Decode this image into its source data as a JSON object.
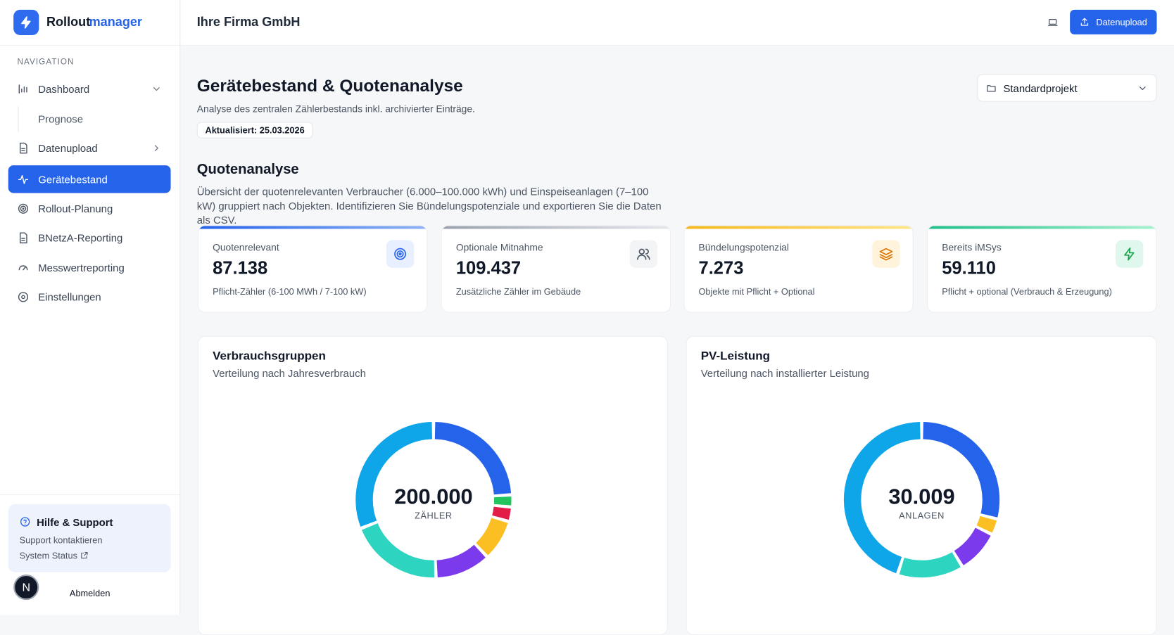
{
  "sidebar": {
    "brand": [
      "Rollout",
      "manager"
    ],
    "nav_heading": "NAVIGATION",
    "nav": [
      "Dashboard",
      "Prognose",
      "Datenupload",
      "Gerätebestand",
      "Rollout-Planung",
      "BNetzA-Reporting",
      "Messwertreporting",
      "Einstellungen"
    ],
    "help": {
      "title": "Hilfe & Support",
      "links": [
        "Support kontaktieren",
        "System Status"
      ]
    },
    "avatar": "N",
    "logout": "Abmelden"
  },
  "header": {
    "company": "Ihre Firma GmbH",
    "upload_button": "Datenupload"
  },
  "page": {
    "title": "Gerätebestand & Quotenanalyse",
    "subtitle": "Analyse des zentralen Zählerbestands inkl. archivierter Einträge.",
    "updated": "Aktualisiert: 25.03.2026",
    "project_select": "Standardprojekt"
  },
  "section": {
    "title": "Quotenanalyse",
    "description": "Übersicht der quotenrelevanten Verbraucher (6.000–100.000 kWh) und Einspeiseanlagen (7–100 kW) gruppiert nach Objekten. Identifizieren Sie Bündelungspotenziale und exportieren Sie die Daten als CSV."
  },
  "kpis": [
    {
      "label": "Quotenrelevant",
      "value": "87.138",
      "caption": "Pflicht-Zähler (6-100 MWh / 7-100 kW)"
    },
    {
      "label": "Optionale Mitnahme",
      "value": "109.437",
      "caption": "Zusätzliche Zähler im Gebäude"
    },
    {
      "label": "Bündelungspotenzial",
      "value": "7.273",
      "caption": "Objekte mit Pflicht + Optional"
    },
    {
      "label": "Bereits iMSys",
      "value": "59.110",
      "caption": "Pflicht + optional (Verbrauch & Erzeugung)"
    }
  ],
  "chart_data": [
    {
      "type": "pie",
      "title": "Verbrauchsgruppen",
      "subtitle": "Verteilung nach Jahresverbrauch",
      "center_value": "200.000",
      "center_label": "ZÄHLER",
      "values": [
        48000,
        5000,
        6000,
        17000,
        23000,
        39000,
        62000
      ],
      "colors": [
        "#2563eb",
        "#22c55e",
        "#e11d48",
        "#fbbf24",
        "#7c3aed",
        "#2dd4bf",
        "#0ea5e9"
      ]
    },
    {
      "type": "pie",
      "title": "PV-Leistung",
      "subtitle": "Verteilung nach installierter Leistung",
      "center_value": "30.009",
      "center_label": "ANLAGEN",
      "values": [
        8700,
        1000,
        2700,
        4100,
        13509
      ],
      "colors": [
        "#2563eb",
        "#fbbf24",
        "#7c3aed",
        "#2dd4bf",
        "#0ea5e9"
      ]
    }
  ]
}
